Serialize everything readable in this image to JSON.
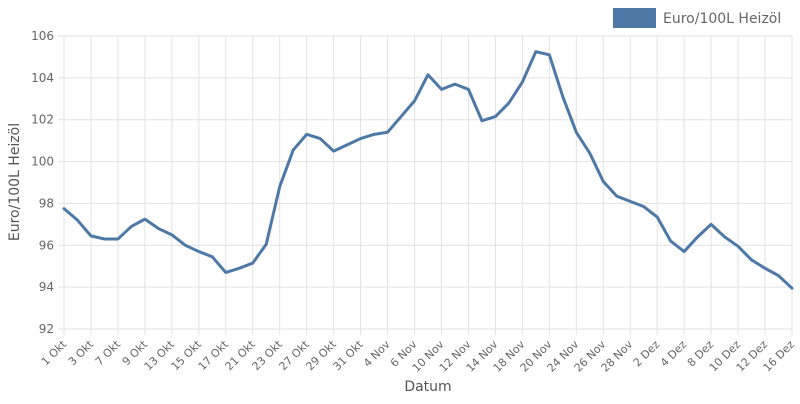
{
  "chart_data": {
    "type": "line",
    "xlabel": "Datum",
    "ylabel": "Euro/100L Heizöl",
    "ylim": [
      92,
      106
    ],
    "yticks": [
      92,
      94,
      96,
      98,
      100,
      102,
      104,
      106
    ],
    "grid": true,
    "legend_position": "top-right",
    "x_tick_labels": [
      "1 Okt",
      "3 Okt",
      "7 Okt",
      "9 Okt",
      "13 Okt",
      "15 Okt",
      "17 Okt",
      "21 Okt",
      "23 Okt",
      "27 Okt",
      "29 Okt",
      "31 Okt",
      "4 Nov",
      "6 Nov",
      "10 Nov",
      "12 Nov",
      "14 Nov",
      "18 Nov",
      "20 Nov",
      "24 Nov",
      "26 Nov",
      "28 Nov",
      "2 Dez",
      "4 Dez",
      "8 Dez",
      "10 Dez",
      "12 Dez",
      "16 Dez"
    ],
    "series": [
      {
        "name": "Euro/100L Heizöl",
        "color": "#4e79a7",
        "values": [
          97.75,
          97.2,
          96.45,
          96.3,
          96.3,
          96.9,
          97.25,
          96.8,
          96.5,
          96.0,
          95.7,
          95.45,
          94.7,
          94.9,
          95.15,
          96.05,
          98.8,
          100.55,
          101.3,
          101.1,
          100.5,
          100.8,
          101.1,
          101.3,
          101.4,
          102.15,
          102.9,
          104.15,
          103.45,
          103.7,
          103.45,
          101.95,
          102.15,
          102.8,
          103.8,
          105.25,
          105.1,
          103.1,
          101.4,
          100.4,
          99.05,
          98.35,
          98.1,
          97.85,
          97.35,
          96.2,
          95.7,
          96.4,
          97.0,
          96.4,
          95.95,
          95.3,
          94.9,
          94.55,
          93.95
        ]
      }
    ]
  }
}
